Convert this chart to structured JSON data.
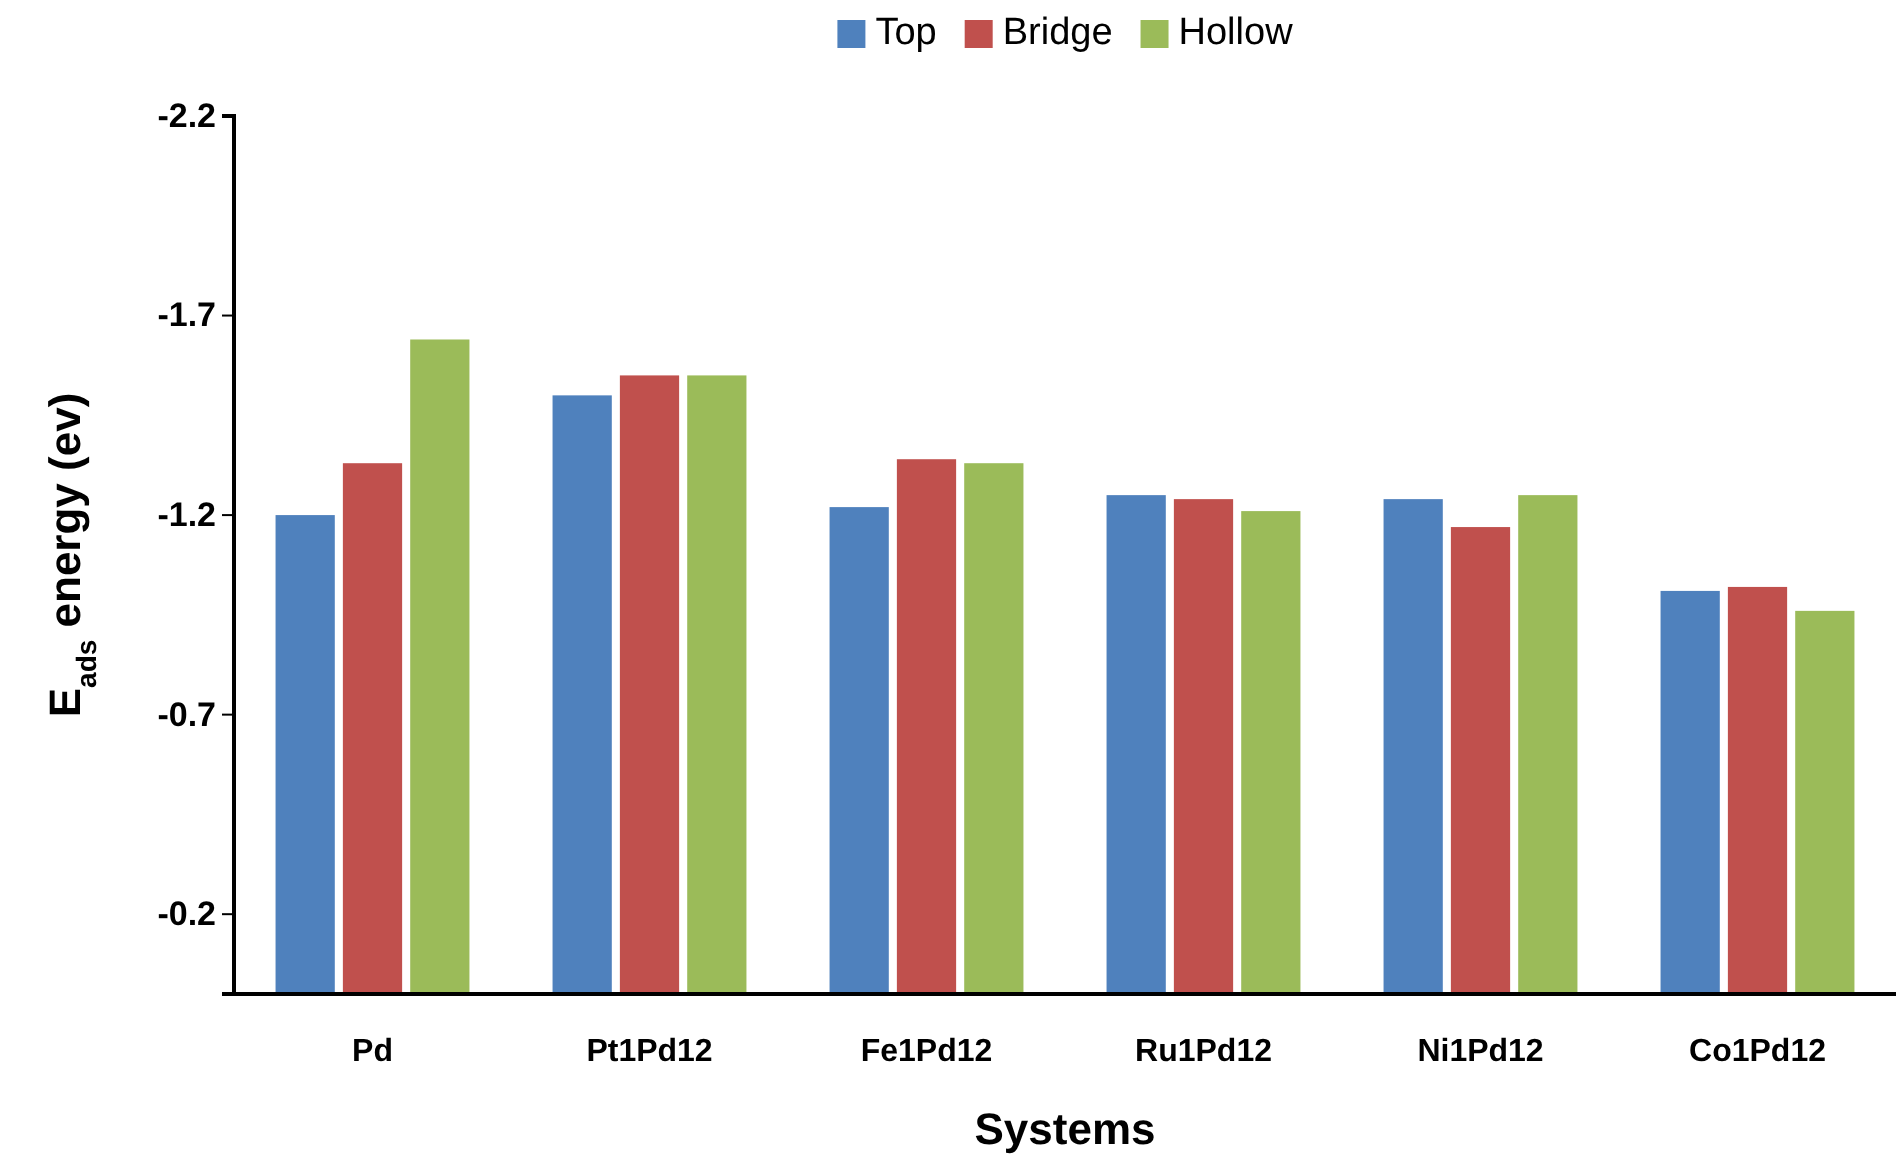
{
  "chart_data": {
    "type": "bar",
    "xlabel": "Systems",
    "ylabel": "E$_{ads}$ energy (ev)",
    "categories": [
      "Pd",
      "Pt1Pd12",
      "Fe1Pd12",
      "Ru1Pd12",
      "Ni1Pd12",
      "Co1Pd12"
    ],
    "series": [
      {
        "name": "Top",
        "color": "#4f81bd",
        "values": [
          -1.2,
          -1.5,
          -1.22,
          -1.25,
          -1.24,
          -1.01
        ]
      },
      {
        "name": "Bridge",
        "color": "#c0504d",
        "values": [
          -1.33,
          -1.55,
          -1.34,
          -1.24,
          -1.17,
          -1.02
        ]
      },
      {
        "name": "Hollow",
        "color": "#9bbb59",
        "values": [
          -1.64,
          -1.55,
          -1.33,
          -1.21,
          -1.25,
          -0.96
        ]
      }
    ],
    "ylim": [
      0,
      -2.2
    ],
    "yticks": [
      -0.2,
      -0.7,
      -1.2,
      -1.7,
      -2.2
    ],
    "grid": false,
    "legend": "top"
  }
}
